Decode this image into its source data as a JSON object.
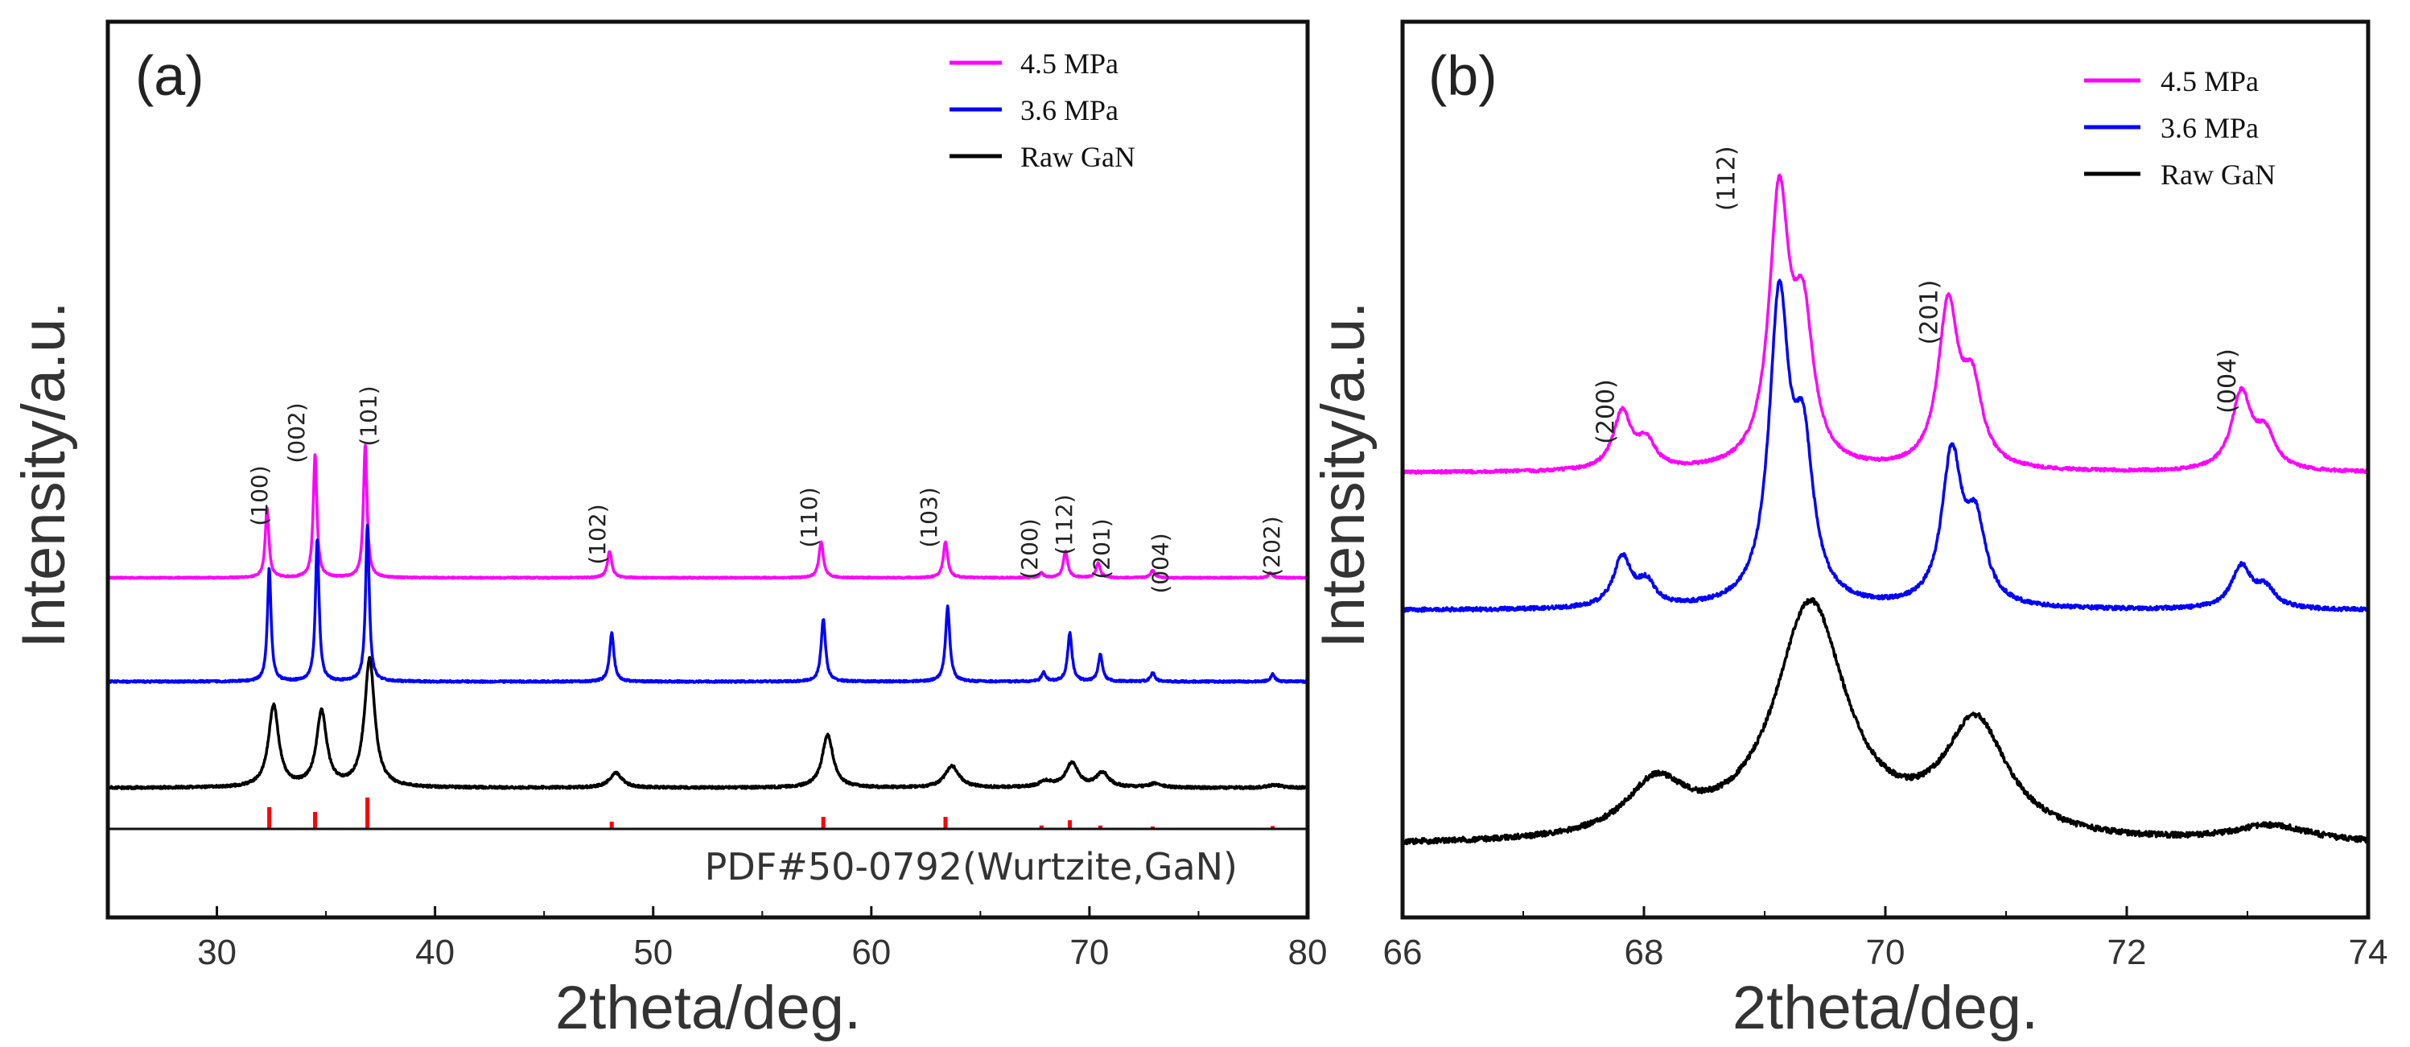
{
  "chart_data": [
    {
      "type": "line",
      "panel_label": "(a)",
      "xlabel": "2theta/deg.",
      "ylabel": "Intensity/a.u.",
      "xlim": [
        25,
        80
      ],
      "xticks": [
        "30",
        "40",
        "50",
        "60",
        "70",
        "80"
      ],
      "legend_position": "top-right",
      "series": [
        {
          "name": "4.5 MPa",
          "color": "#ff00ff",
          "baseline": 5.2,
          "noise": 0.015,
          "peaks": [
            [
              32.3,
              1.45,
              0.1
            ],
            [
              34.5,
              2.55,
              0.1
            ],
            [
              36.8,
              2.75,
              0.1
            ],
            [
              48.0,
              0.55,
              0.12
            ],
            [
              57.7,
              0.75,
              0.12
            ],
            [
              63.4,
              0.75,
              0.12
            ],
            [
              67.8,
              0.1,
              0.12
            ],
            [
              68.9,
              0.55,
              0.12
            ],
            [
              70.4,
              0.3,
              0.12
            ],
            [
              72.9,
              0.15,
              0.12
            ],
            [
              78.3,
              0.1,
              0.12
            ]
          ]
        },
        {
          "name": "3.6 MPa",
          "color": "#0000ff",
          "baseline": 3.05,
          "noise": 0.02,
          "peaks": [
            [
              32.4,
              2.35,
              0.1
            ],
            [
              34.6,
              2.95,
              0.1
            ],
            [
              36.9,
              3.25,
              0.1
            ],
            [
              48.1,
              1.0,
              0.12
            ],
            [
              57.8,
              1.3,
              0.12
            ],
            [
              63.5,
              1.55,
              0.12
            ],
            [
              67.9,
              0.18,
              0.12
            ],
            [
              69.1,
              1.0,
              0.12
            ],
            [
              70.5,
              0.55,
              0.12
            ],
            [
              72.9,
              0.18,
              0.12
            ],
            [
              78.4,
              0.15,
              0.12
            ]
          ]
        },
        {
          "name": "Raw GaN",
          "color": "#000000",
          "baseline": 0.85,
          "noise": 0.025,
          "peaks": [
            [
              32.6,
              1.7,
              0.28
            ],
            [
              34.8,
              1.55,
              0.28
            ],
            [
              37.0,
              2.65,
              0.28
            ],
            [
              48.3,
              0.3,
              0.35
            ],
            [
              58.0,
              1.1,
              0.3
            ],
            [
              63.7,
              0.45,
              0.38
            ],
            [
              68.0,
              0.12,
              0.35
            ],
            [
              69.2,
              0.5,
              0.35
            ],
            [
              70.6,
              0.3,
              0.35
            ],
            [
              73.0,
              0.08,
              0.35
            ],
            [
              78.5,
              0.06,
              0.35
            ]
          ]
        }
      ],
      "reference": {
        "label": "PDF#50-0792(Wurtzite,GaN)",
        "color": "#ff0000",
        "lines": [
          [
            32.4,
            0.45
          ],
          [
            34.5,
            0.35
          ],
          [
            36.9,
            0.65
          ],
          [
            48.1,
            0.15
          ],
          [
            57.8,
            0.25
          ],
          [
            63.4,
            0.25
          ],
          [
            67.8,
            0.07
          ],
          [
            69.1,
            0.18
          ],
          [
            70.5,
            0.07
          ],
          [
            72.9,
            0.05
          ],
          [
            78.4,
            0.06
          ]
        ]
      },
      "annotations": [
        {
          "text": "(100)",
          "x": 32.3,
          "y": 6.9
        },
        {
          "text": "(002)",
          "x": 34.0,
          "y": 8.2
        },
        {
          "text": "(101)",
          "x": 37.3,
          "y": 8.55
        },
        {
          "text": "(102)",
          "x": 47.8,
          "y": 6.1
        },
        {
          "text": "(110)",
          "x": 57.5,
          "y": 6.45
        },
        {
          "text": "(103)",
          "x": 63.0,
          "y": 6.45
        },
        {
          "text": "(200)",
          "x": 67.6,
          "y": 5.8
        },
        {
          "text": "(112)",
          "x": 69.2,
          "y": 6.3
        },
        {
          "text": "(201)",
          "x": 70.9,
          "y": 5.8
        },
        {
          "text": "(004)",
          "x": 73.6,
          "y": 5.5
        },
        {
          "text": "(202)",
          "x": 78.7,
          "y": 5.85
        }
      ]
    },
    {
      "type": "line",
      "panel_label": "(b)",
      "xlabel": "2theta/deg.",
      "ylabel": "Intensity/a.u.",
      "xlim": [
        66,
        74
      ],
      "xticks": [
        "66",
        "68",
        "70",
        "72",
        "74"
      ],
      "legend_position": "top-right",
      "series": [
        {
          "name": "4.5 MPa",
          "color": "#ff00ff",
          "baseline": 5.1,
          "noise": 0.02,
          "peaks": [
            [
              67.82,
              0.75,
              0.09
            ],
            [
              68.02,
              0.35,
              0.09
            ],
            [
              69.12,
              3.5,
              0.1
            ],
            [
              69.32,
              1.8,
              0.1
            ],
            [
              70.52,
              2.1,
              0.1
            ],
            [
              70.72,
              1.0,
              0.1
            ],
            [
              72.95,
              1.0,
              0.1
            ],
            [
              73.15,
              0.45,
              0.1
            ]
          ]
        },
        {
          "name": "3.6 MPa",
          "color": "#0000ff",
          "baseline": 3.3,
          "noise": 0.025,
          "peaks": [
            [
              67.82,
              0.65,
              0.09
            ],
            [
              68.02,
              0.3,
              0.09
            ],
            [
              69.12,
              3.9,
              0.1
            ],
            [
              69.32,
              1.9,
              0.1
            ],
            [
              70.55,
              1.95,
              0.1
            ],
            [
              70.75,
              1.0,
              0.1
            ],
            [
              72.95,
              0.55,
              0.1
            ],
            [
              73.15,
              0.25,
              0.1
            ]
          ]
        },
        {
          "name": "Raw GaN",
          "color": "#000000",
          "baseline": 0.22,
          "noise": 0.035,
          "peaks": [
            [
              68.1,
              0.7,
              0.3
            ],
            [
              69.38,
              3.1,
              0.36
            ],
            [
              70.75,
              1.5,
              0.32
            ],
            [
              73.2,
              0.22,
              0.4
            ]
          ]
        }
      ],
      "annotations": [
        {
          "text": "(200)",
          "x": 67.75,
          "y": 5.9
        },
        {
          "text": "(112)",
          "x": 68.75,
          "y": 8.95
        },
        {
          "text": "(201)",
          "x": 70.43,
          "y": 7.2
        },
        {
          "text": "(004)",
          "x": 72.9,
          "y": 6.3
        }
      ]
    }
  ]
}
